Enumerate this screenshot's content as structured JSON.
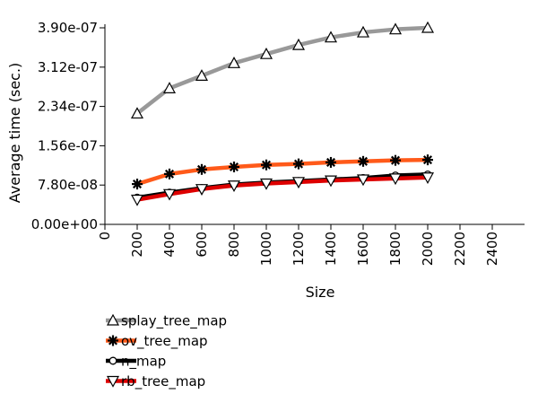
{
  "chart_data": {
    "type": "line",
    "title": "",
    "xlabel": "Size",
    "ylabel": "Average time (sec.)",
    "xlim": [
      0,
      2600
    ],
    "ylim": [
      0,
      3.9e-07
    ],
    "x_ticks": [
      0,
      200,
      400,
      600,
      800,
      1000,
      1200,
      1400,
      1600,
      1800,
      2000,
      2200,
      2400
    ],
    "x_tick_labels": [
      "0",
      "200",
      "400",
      "600",
      "800",
      "1000",
      "1200",
      "1400",
      "1600",
      "1800",
      "2000",
      "2200",
      "2400"
    ],
    "y_ticks": [
      0,
      7.8e-08,
      1.56e-07,
      2.34e-07,
      3.12e-07,
      3.9e-07
    ],
    "y_tick_labels": [
      "0.00e+00",
      "7.80e-08",
      "1.56e-07",
      "2.34e-07",
      "3.12e-07",
      "3.90e-07"
    ],
    "grid": false,
    "legend_position": "bottom-left",
    "x": [
      200,
      400,
      600,
      800,
      1000,
      1200,
      1400,
      1600,
      1800,
      2000
    ],
    "series": [
      {
        "name": "splay_tree_map",
        "color": "#999999",
        "marker": "triangle-up",
        "values": [
          2.2e-07,
          2.7e-07,
          2.95e-07,
          3.2e-07,
          3.38e-07,
          3.56e-07,
          3.71e-07,
          3.81e-07,
          3.87e-07,
          3.9e-07
        ]
      },
      {
        "name": "ov_tree_map",
        "color": "#ff5a1a",
        "marker": "asterisk",
        "values": [
          8e-08,
          1e-07,
          1.09e-07,
          1.14e-07,
          1.18e-07,
          1.2e-07,
          1.23e-07,
          1.25e-07,
          1.27e-07,
          1.28e-07
        ]
      },
      {
        "name": "n_map",
        "color": "#000000",
        "marker": "circle",
        "values": [
          5.3e-08,
          6.3e-08,
          7.2e-08,
          7.9e-08,
          8.3e-08,
          8.6e-08,
          8.9e-08,
          9.2e-08,
          9.7e-08,
          9.9e-08
        ]
      },
      {
        "name": "rb_tree_map",
        "color": "#dd0000",
        "marker": "triangle-down",
        "values": [
          4.9e-08,
          6e-08,
          7e-08,
          7.7e-08,
          8.1e-08,
          8.4e-08,
          8.7e-08,
          8.9e-08,
          9.1e-08,
          9.3e-08
        ]
      }
    ]
  }
}
